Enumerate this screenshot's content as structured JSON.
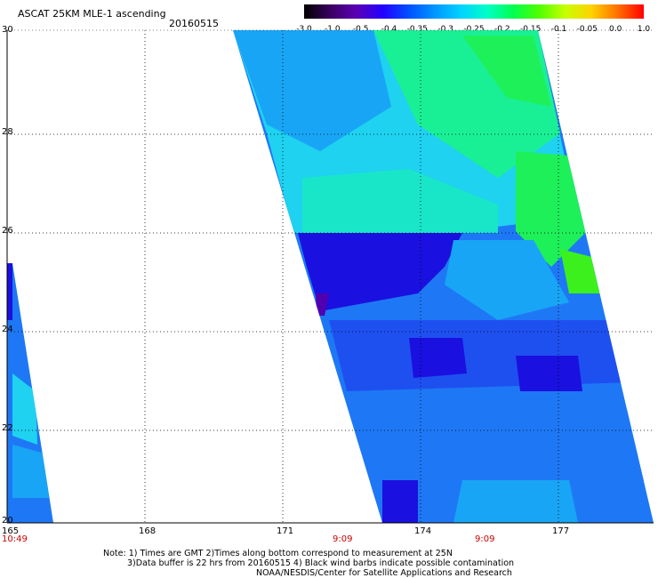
{
  "header": {
    "title": "ASCAT 25KM MLE-1 ascending",
    "date": "20160515"
  },
  "colorbar": {
    "tick_labels": [
      "-3.0",
      "-1.0",
      "-0.5",
      "-0.4",
      "-0.35",
      "-0.3",
      "-0.25",
      "-0.2",
      "-0.15",
      "-0.1",
      "-0.05",
      "0.0",
      "1.0"
    ],
    "stops": [
      "#000000",
      "#3a0060",
      "#5a00b4",
      "#2400ff",
      "#0050ff",
      "#0096ff",
      "#00d2ff",
      "#00ffc8",
      "#00ff50",
      "#50ff00",
      "#c8ff00",
      "#ffd200",
      "#ff7000",
      "#ff0000"
    ]
  },
  "map": {
    "lat_labels": [
      "30",
      "28",
      "26",
      "24",
      "22",
      "20"
    ],
    "lon_labels": [
      "165",
      "168",
      "171",
      "174",
      "177"
    ],
    "time_labels": [
      "10:49",
      "9:09",
      "9:09"
    ],
    "grid_color": "#000000",
    "swath_colors": {
      "purple": "#5000b0",
      "deep_blue": "#1a10e0",
      "blue": "#1e50f0",
      "mid_blue": "#1e78f5",
      "sky": "#19a5f5",
      "cyan": "#1ed2f0",
      "aqua": "#19e6c8",
      "mint": "#19f096",
      "green": "#1ef05a",
      "lime": "#3cf01e"
    }
  },
  "notes": {
    "line1": "Note: 1) Times are GMT 2)Times along bottom correspond to measurement at 25N",
    "line2": "3)Data buffer is 22 hrs from 20160515 4) Black wind barbs indicate possible contamination",
    "line3": "NOAA/NESDIS/Center for Satellite Applications and Research"
  }
}
